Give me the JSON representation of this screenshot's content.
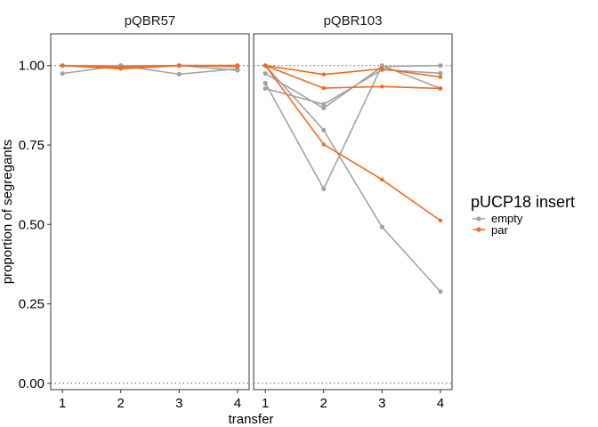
{
  "chart_data": {
    "type": "line",
    "xlabel": "transfer",
    "ylabel": "proportion of segregants",
    "x_ticks": [
      1,
      2,
      3,
      4
    ],
    "x_tick_labels": [
      "1",
      "2",
      "3",
      "4"
    ],
    "y_ticks": [
      0,
      0.25,
      0.5,
      0.75,
      1
    ],
    "y_tick_labels": [
      "0.00",
      "0.25",
      "0.50",
      "0.75",
      "1.00"
    ],
    "ylim": [
      -0.02,
      1.1
    ],
    "xlim": [
      0.8,
      4.2
    ],
    "reference_lines": [
      0,
      1
    ],
    "legend": {
      "title": "pUCP18 insert",
      "placement": "right",
      "entries": [
        {
          "label": "empty",
          "color": "#a3a3a3"
        },
        {
          "label": "par",
          "color": "#f26b1d"
        }
      ]
    },
    "panels": [
      {
        "title": "pQBR57",
        "series": [
          {
            "group": "empty",
            "x": [
              1,
              2,
              3,
              4
            ],
            "y": [
              0.975,
              1.0,
              0.973,
              0.99
            ]
          },
          {
            "group": "empty",
            "x": [
              1,
              2,
              3,
              4
            ],
            "y": [
              1.0,
              1.0,
              1.0,
              1.0
            ]
          },
          {
            "group": "empty",
            "x": [
              1,
              2,
              3,
              4
            ],
            "y": [
              1.0,
              0.995,
              1.0,
              0.985
            ]
          },
          {
            "group": "par",
            "x": [
              1,
              2,
              3,
              4
            ],
            "y": [
              1.0,
              0.995,
              1.0,
              1.0
            ]
          },
          {
            "group": "par",
            "x": [
              1,
              2,
              3,
              4
            ],
            "y": [
              1.0,
              0.993,
              1.0,
              0.997
            ]
          },
          {
            "group": "par",
            "x": [
              1,
              2,
              3,
              4
            ],
            "y": [
              1.0,
              0.99,
              1.0,
              1.0
            ]
          }
        ]
      },
      {
        "title": "pQBR103",
        "series": [
          {
            "group": "empty",
            "x": [
              1,
              2,
              3,
              4
            ],
            "y": [
              0.945,
              0.612,
              1.0,
              0.928
            ]
          },
          {
            "group": "empty",
            "x": [
              1,
              2,
              3,
              4
            ],
            "y": [
              0.928,
              0.878,
              0.987,
              0.976
            ]
          },
          {
            "group": "empty",
            "x": [
              1,
              2,
              3,
              4
            ],
            "y": [
              0.975,
              0.866,
              0.997,
              1.0
            ]
          },
          {
            "group": "empty",
            "x": [
              1,
              2,
              3,
              4
            ],
            "y": [
              1.0,
              0.797,
              0.492,
              0.289
            ]
          },
          {
            "group": "par",
            "x": [
              1,
              2,
              3,
              4
            ],
            "y": [
              1.0,
              0.752,
              0.641,
              0.512
            ]
          },
          {
            "group": "par",
            "x": [
              1,
              2,
              3,
              4
            ],
            "y": [
              1.0,
              0.929,
              0.934,
              0.928
            ]
          },
          {
            "group": "par",
            "x": [
              1,
              2,
              3,
              4
            ],
            "y": [
              1.0,
              0.972,
              0.99,
              0.964
            ]
          }
        ]
      }
    ]
  }
}
